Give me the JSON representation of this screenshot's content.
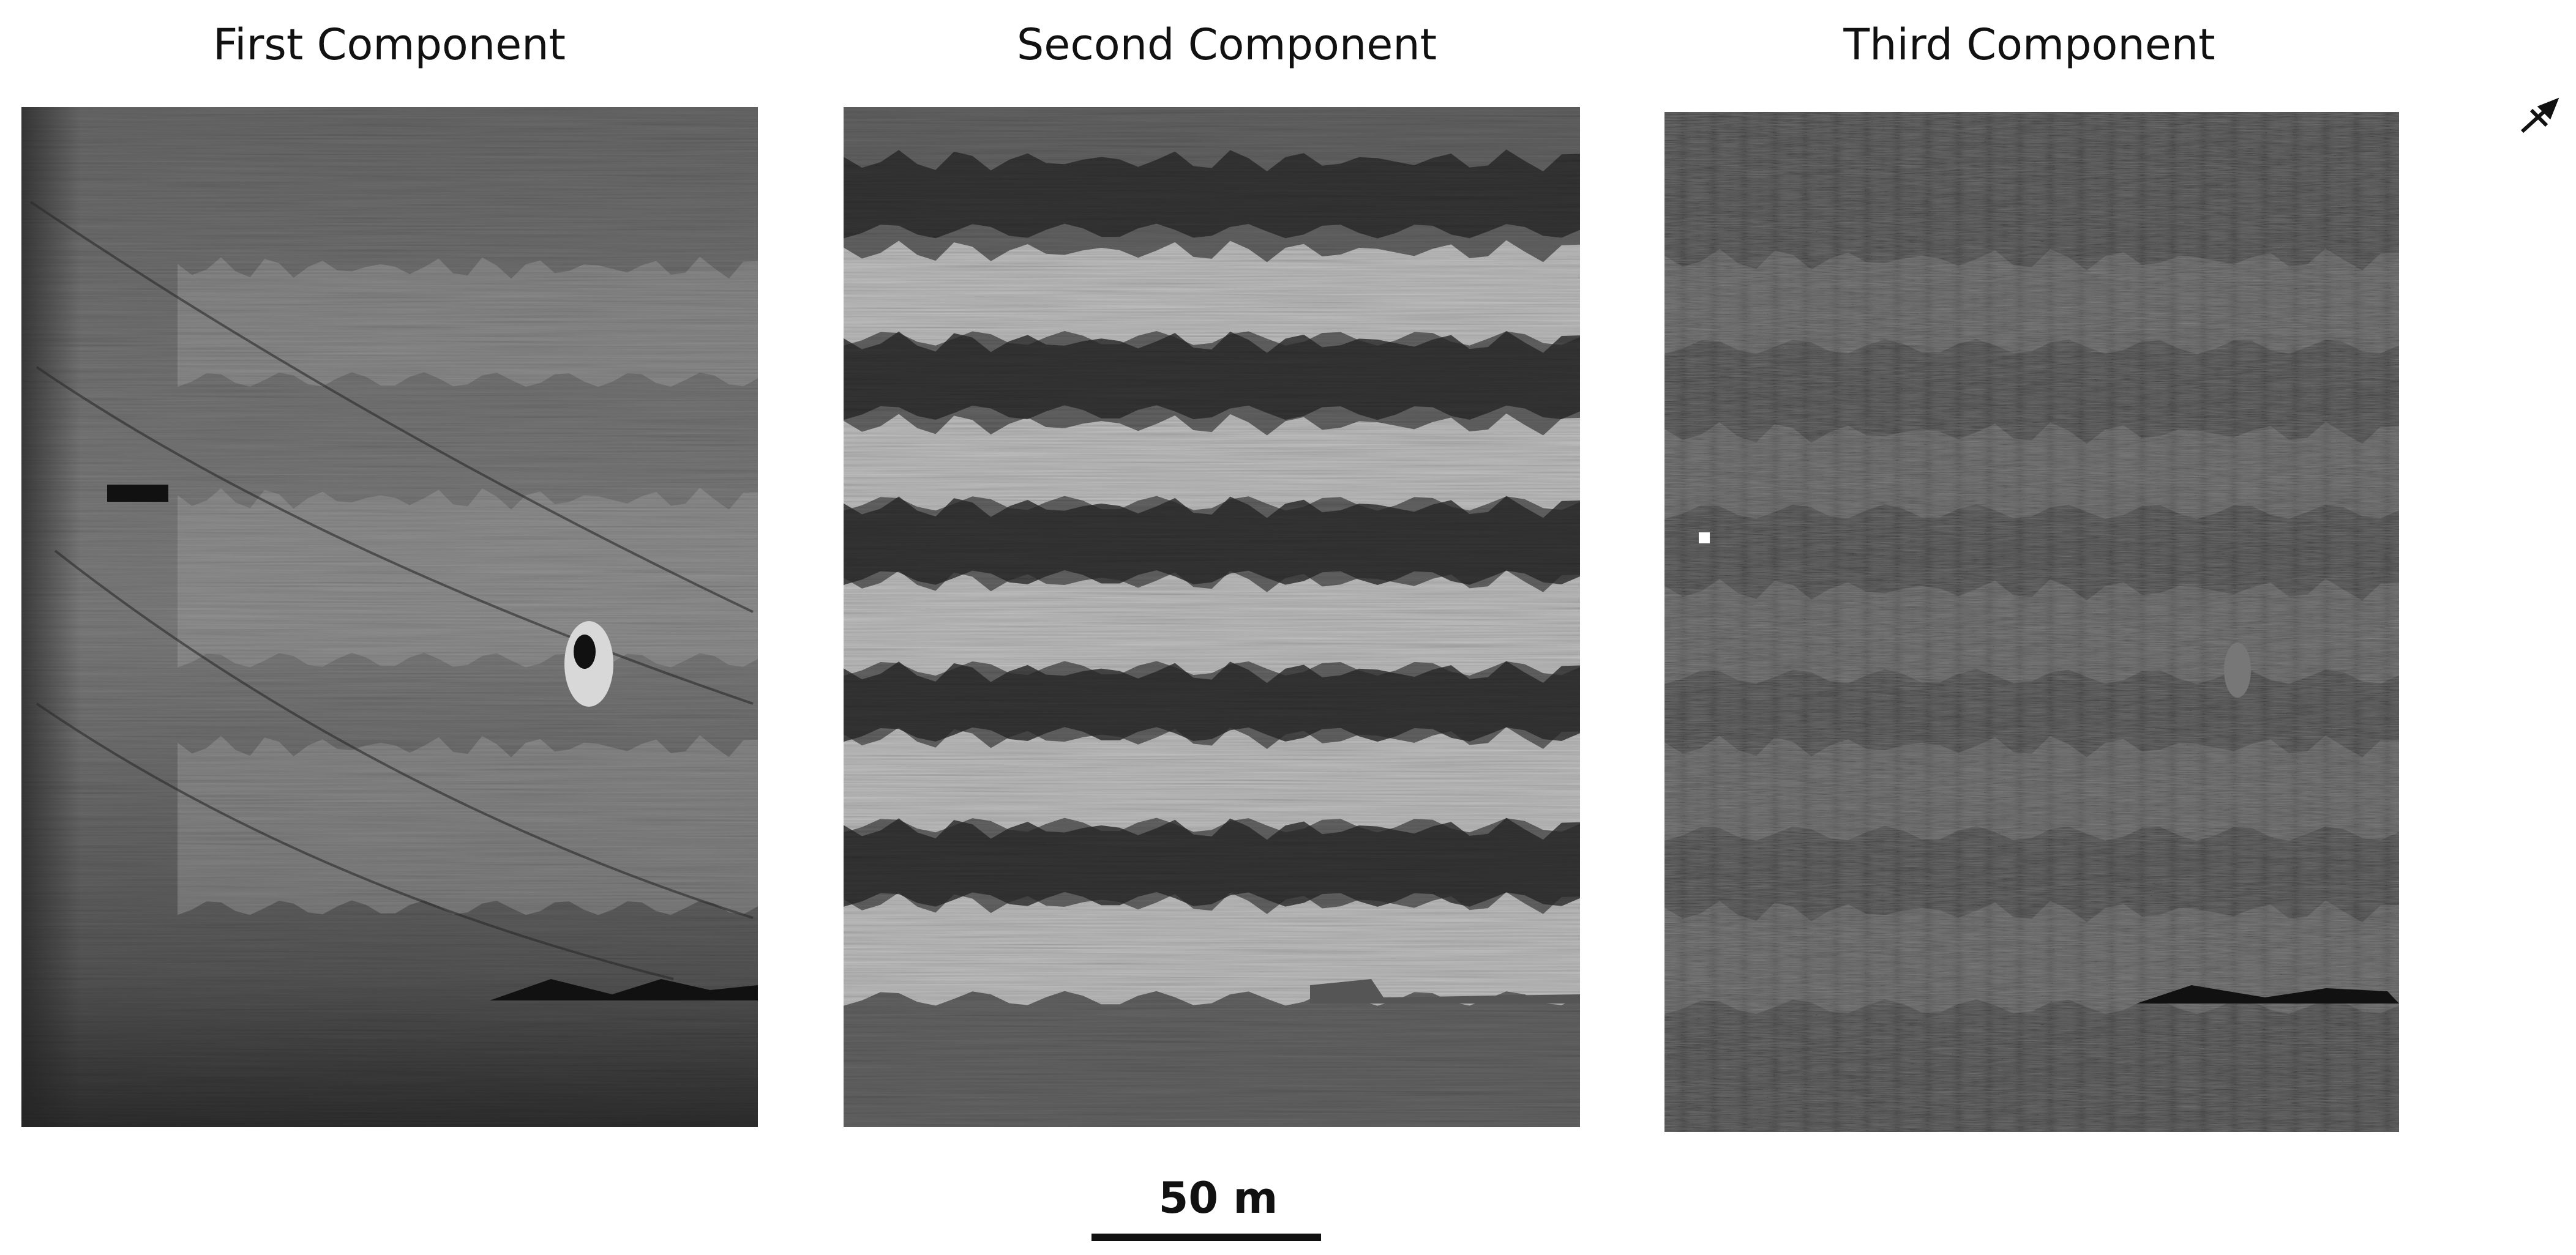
{
  "panels": [
    {
      "title": "First Component"
    },
    {
      "title": "Second Component"
    },
    {
      "title": "Third Component"
    }
  ],
  "scale_bar": {
    "label": "50 m"
  }
}
